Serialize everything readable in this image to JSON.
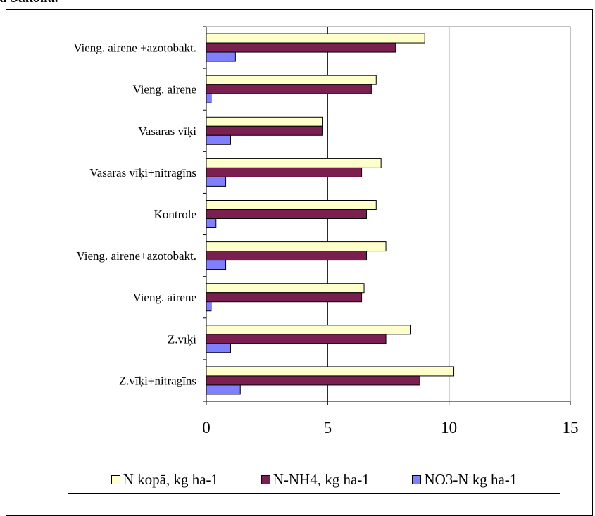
{
  "header": {
    "text": "a Statoila."
  },
  "chart_data": {
    "type": "bar",
    "orientation": "horizontal",
    "categories": [
      "Vieng. airene +azotobakt.",
      "Vieng. airene",
      "Vasaras vīķi",
      "Vasaras vīķi+nitragīns",
      "Kontrole",
      "Vieng. airene+azotobakt.",
      "Vieng. airene",
      "Z.vīķi",
      "Z.vīķi+nitragīns"
    ],
    "series": [
      {
        "name": "N kopā, kg ha-1",
        "color": "#FFFFCC",
        "values": [
          9.0,
          7.0,
          4.8,
          7.2,
          7.0,
          7.4,
          6.5,
          8.4,
          10.2
        ]
      },
      {
        "name": "N-NH4, kg ha-1",
        "color": "#7A1F4F",
        "values": [
          7.8,
          6.8,
          4.8,
          6.4,
          6.6,
          6.6,
          6.4,
          7.4,
          8.8
        ]
      },
      {
        "name": "NO3-N kg ha-1",
        "color": "#8080FF",
        "values": [
          1.2,
          0.2,
          1.0,
          0.8,
          0.4,
          0.8,
          0.2,
          1.0,
          1.4
        ]
      }
    ],
    "xlim": [
      0,
      15
    ],
    "xticks": [
      0,
      5,
      10,
      15
    ],
    "xlabel": "",
    "ylabel": "",
    "grid": "vertical major gridlines",
    "legend_position": "bottom"
  }
}
